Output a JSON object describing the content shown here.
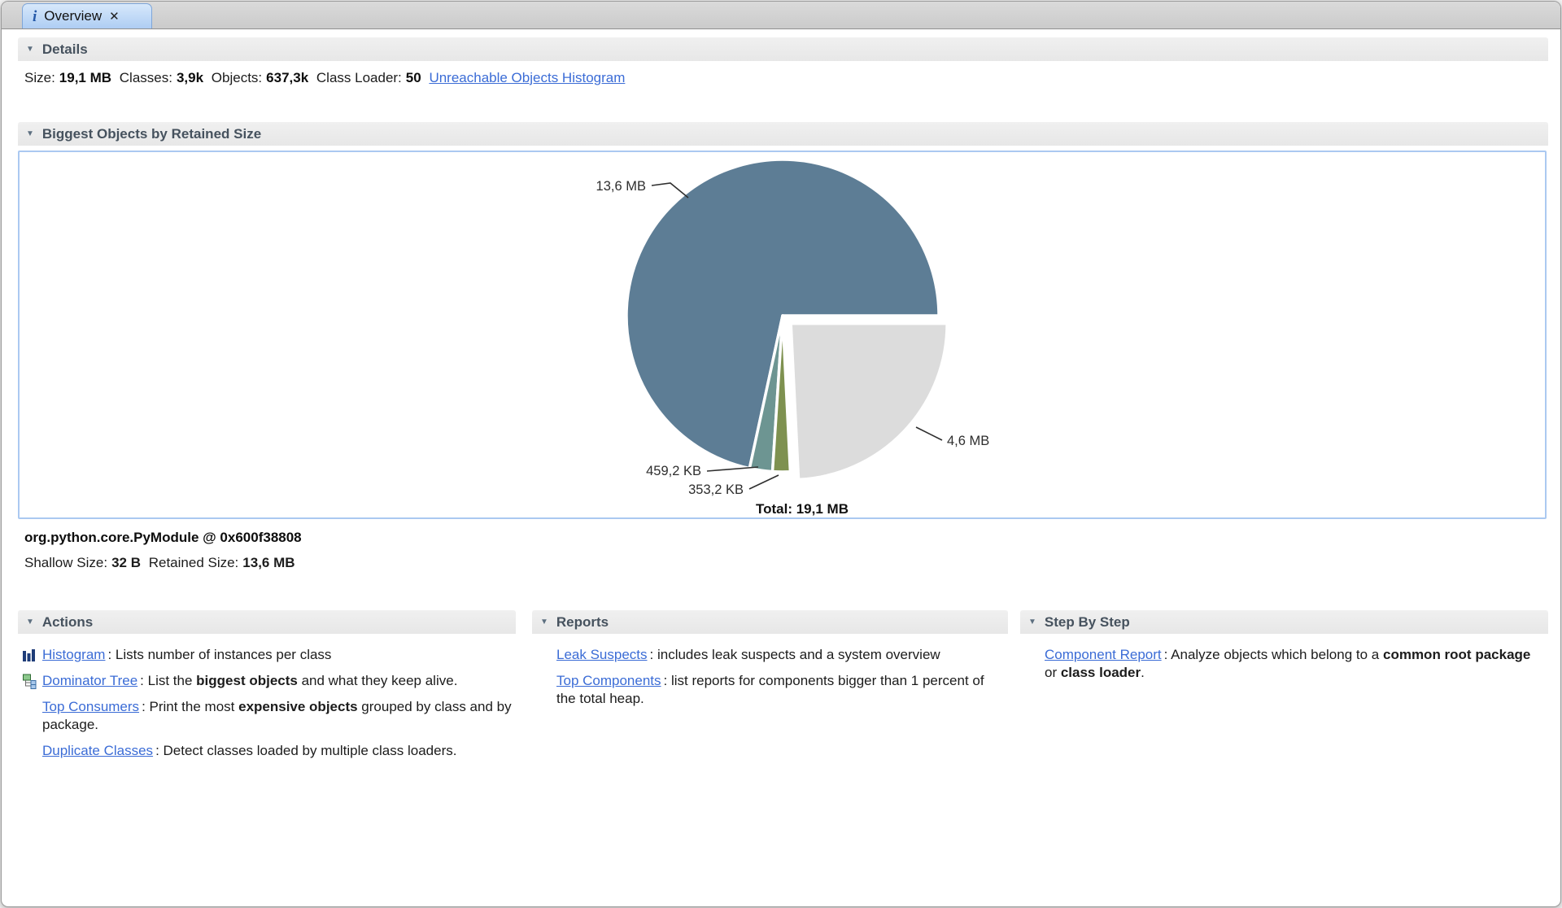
{
  "tab": {
    "title": "Overview",
    "info_glyph": "i",
    "close_glyph": "✕"
  },
  "details": {
    "header": "Details",
    "fields": [
      {
        "label": "Size:",
        "value": "19,1 MB"
      },
      {
        "label": "Classes:",
        "value": "3,9k"
      },
      {
        "label": "Objects:",
        "value": "637,3k"
      },
      {
        "label": "Class Loader:",
        "value": "50"
      }
    ],
    "link": "Unreachable Objects Histogram"
  },
  "biggest_objects": {
    "header": "Biggest Objects by Retained Size",
    "selected_object": "org.python.core.PyModule @ 0x600f38808",
    "shallow_label": "Shallow Size:",
    "shallow_value": "32 B",
    "retained_label": "Retained Size:",
    "retained_value": "13,6 MB"
  },
  "chart_data": {
    "type": "pie",
    "title": "Biggest Objects by Retained Size",
    "total_label": "Total: 19,1 MB",
    "total_mb": 19.1,
    "legend_position": "none",
    "slices": [
      {
        "label": "13,6 MB",
        "value_mb": 13.6,
        "color": "#5d7d95",
        "exploded": false
      },
      {
        "label": "459,2 KB",
        "value_mb": 0.4485,
        "color": "#6d9592",
        "exploded": false
      },
      {
        "label": "353,2 KB",
        "value_mb": 0.345,
        "color": "#7e9150",
        "exploded": false
      },
      {
        "label": "4,6 MB",
        "value_mb": 4.6,
        "color": "#dcdcdc",
        "exploded": true
      }
    ]
  },
  "sections": [
    {
      "header": "Actions",
      "items": [
        {
          "icon": "histogram-icon",
          "link": "Histogram",
          "desc": [
            {
              "t": ": Lists number of instances per class"
            }
          ]
        },
        {
          "icon": "dominator-tree-icon",
          "link": "Dominator Tree",
          "desc": [
            {
              "t": ": List the "
            },
            {
              "t": "biggest objects",
              "b": true
            },
            {
              "t": " and what they keep alive."
            }
          ]
        },
        {
          "link": "Top Consumers",
          "desc": [
            {
              "t": ": Print the most "
            },
            {
              "t": "expensive objects",
              "b": true
            },
            {
              "t": " grouped by class and by package."
            }
          ]
        },
        {
          "link": "Duplicate Classes",
          "desc": [
            {
              "t": ": Detect classes loaded by multiple class loaders."
            }
          ]
        }
      ]
    },
    {
      "header": "Reports",
      "items": [
        {
          "link": "Leak Suspects",
          "desc": [
            {
              "t": ": includes leak suspects and a system overview"
            }
          ]
        },
        {
          "link": "Top Components",
          "desc": [
            {
              "t": ": list reports for components bigger than 1 percent of the total heap."
            }
          ]
        }
      ]
    },
    {
      "header": "Step By Step",
      "items": [
        {
          "link": "Component Report",
          "desc": [
            {
              "t": ": Analyze objects which belong to a "
            },
            {
              "t": "common root package",
              "b": true
            },
            {
              "t": " or "
            },
            {
              "t": "class loader",
              "b": true
            },
            {
              "t": "."
            }
          ]
        }
      ]
    }
  ],
  "colors": {
    "link": "#3b6cd6",
    "tab_fill_top": "#d7e8fb",
    "tab_fill_bottom": "#aecdf3",
    "header_text": "#46525e",
    "chart_border": "#abc9f1",
    "pie_main": "#5d7d95",
    "pie_teal": "#6d9592",
    "pie_olive": "#7e9150",
    "pie_gray": "#dcdcdc"
  }
}
